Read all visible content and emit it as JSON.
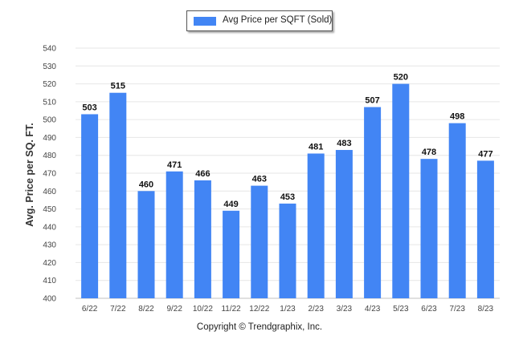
{
  "chart_data": {
    "type": "bar",
    "categories": [
      "6/22",
      "7/22",
      "8/22",
      "9/22",
      "10/22",
      "11/22",
      "12/22",
      "1/23",
      "2/23",
      "3/23",
      "4/23",
      "5/23",
      "6/23",
      "7/23",
      "8/23"
    ],
    "series": [
      {
        "name": "Avg Price per SQFT (Sold)",
        "values": [
          503,
          515,
          460,
          471,
          466,
          449,
          463,
          453,
          481,
          483,
          507,
          520,
          478,
          498,
          477
        ],
        "color": "#4285f4"
      }
    ],
    "ylabel": "Avg. Price per SQ. FT.",
    "xlabel": "",
    "ylim": [
      400,
      540
    ],
    "yticks": [
      400,
      410,
      420,
      430,
      440,
      450,
      460,
      470,
      480,
      490,
      500,
      510,
      520,
      530,
      540
    ],
    "grid": true,
    "legend_position": "top-center",
    "data_labels": true
  },
  "footer": {
    "copyright": "Copyright © Trendgraphix, Inc."
  }
}
